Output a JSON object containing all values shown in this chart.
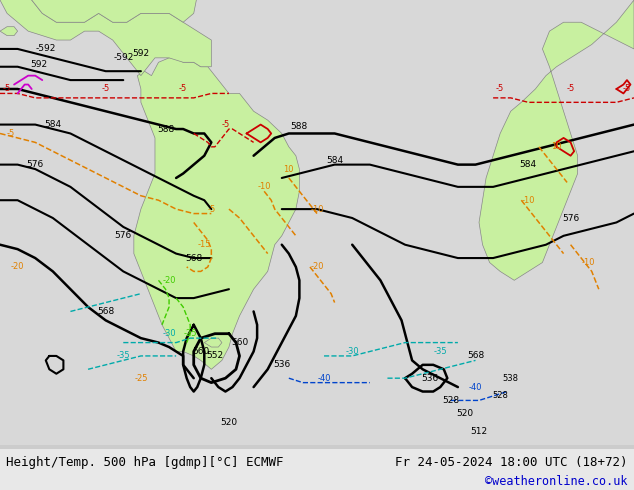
{
  "title_left": "Height/Temp. 500 hPa [gdmp][°C] ECMWF",
  "title_right": "Fr 24-05-2024 18:00 UTC (18+72)",
  "credit": "©weatheronline.co.uk",
  "bg_color": "#d8d8d8",
  "land_color": "#c8f0a0",
  "land_edge_color": "#888888",
  "figsize": [
    6.34,
    4.9
  ],
  "dpi": 100,
  "bottom_bar_color": "#e0e0e0",
  "text_color": "#000000",
  "credit_color": "#0000cc",
  "title_fontsize": 9.0,
  "credit_fontsize": 8.5,
  "lon0": -120,
  "lon1": 60,
  "lat0": -75,
  "lat1": 25
}
